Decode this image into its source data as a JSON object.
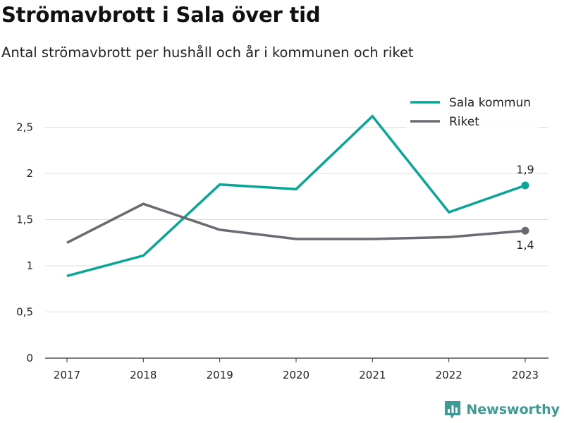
{
  "title": "Strömavbrott i Sala över tid",
  "subtitle": "Antal strömavbrott per hushåll och år i kommunen och riket",
  "brand": {
    "name": "Newsworthy",
    "icon": "newsworthy-logo-icon"
  },
  "colors": {
    "sala": "#0aa597",
    "riket": "#6a6a72",
    "grid": "#dddddd",
    "axis": "#333333",
    "brand": "#3e9a94"
  },
  "chart_data": {
    "type": "line",
    "x": [
      "2017",
      "2018",
      "2019",
      "2020",
      "2021",
      "2022",
      "2023"
    ],
    "series": [
      {
        "name": "Sala kommun",
        "color": "#0aa597",
        "values": [
          0.89,
          1.11,
          1.88,
          1.83,
          2.62,
          1.58,
          1.87
        ],
        "end_label": "1,9"
      },
      {
        "name": "Riket",
        "color": "#6a6a72",
        "values": [
          1.25,
          1.67,
          1.39,
          1.29,
          1.29,
          1.31,
          1.38
        ],
        "end_label": "1,4"
      }
    ],
    "ylim": [
      0,
      2.75
    ],
    "yticks": [
      0,
      0.5,
      1,
      1.5,
      2,
      2.5
    ],
    "ytick_labels": [
      "0",
      "0,5",
      "1",
      "1,5",
      "2",
      "2,5"
    ],
    "grid": true,
    "legend_position": "top-right",
    "title": "Strömavbrott i Sala över tid",
    "xlabel": "",
    "ylabel": ""
  }
}
